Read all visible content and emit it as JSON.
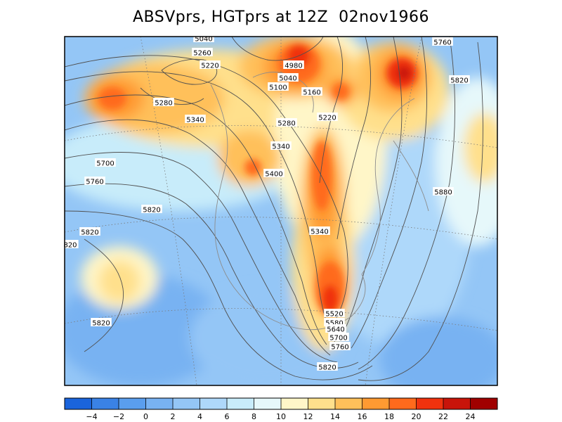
{
  "title": "ABSVprs, HGTprs at 12Z  02nov1966",
  "colorbar": {
    "colors": [
      "#1a64dc",
      "#3a82e6",
      "#5a9eee",
      "#78b2f2",
      "#94c6f6",
      "#aed8fa",
      "#c8ecfa",
      "#e6f8fa",
      "#fff6c8",
      "#ffe08c",
      "#ffc05a",
      "#ff9a32",
      "#ff6a1c",
      "#f0320e",
      "#c8140a",
      "#a00000"
    ],
    "labels": [
      "-4",
      "-2",
      "0",
      "2",
      "4",
      "6",
      "8",
      "10",
      "12",
      "14",
      "16",
      "18",
      "20",
      "22",
      "24"
    ]
  },
  "contour_labels": [
    {
      "text": "5040"
    },
    {
      "text": "5260"
    },
    {
      "text": "5220"
    },
    {
      "text": "4980"
    },
    {
      "text": "5040"
    },
    {
      "text": "5100"
    },
    {
      "text": "5160"
    },
    {
      "text": "5760"
    },
    {
      "text": "5820"
    },
    {
      "text": "5280"
    },
    {
      "text": "5340"
    },
    {
      "text": "5280"
    },
    {
      "text": "5220"
    },
    {
      "text": "5340"
    },
    {
      "text": "5700"
    },
    {
      "text": "5400"
    },
    {
      "text": "5760"
    },
    {
      "text": "5880"
    },
    {
      "text": "5820"
    },
    {
      "text": "5820"
    },
    {
      "text": "5340"
    },
    {
      "text": "820"
    },
    {
      "text": "5520"
    },
    {
      "text": "5580"
    },
    {
      "text": "5640"
    },
    {
      "text": "5700"
    },
    {
      "text": "5760"
    },
    {
      "text": "5820"
    },
    {
      "text": "5820"
    }
  ]
}
